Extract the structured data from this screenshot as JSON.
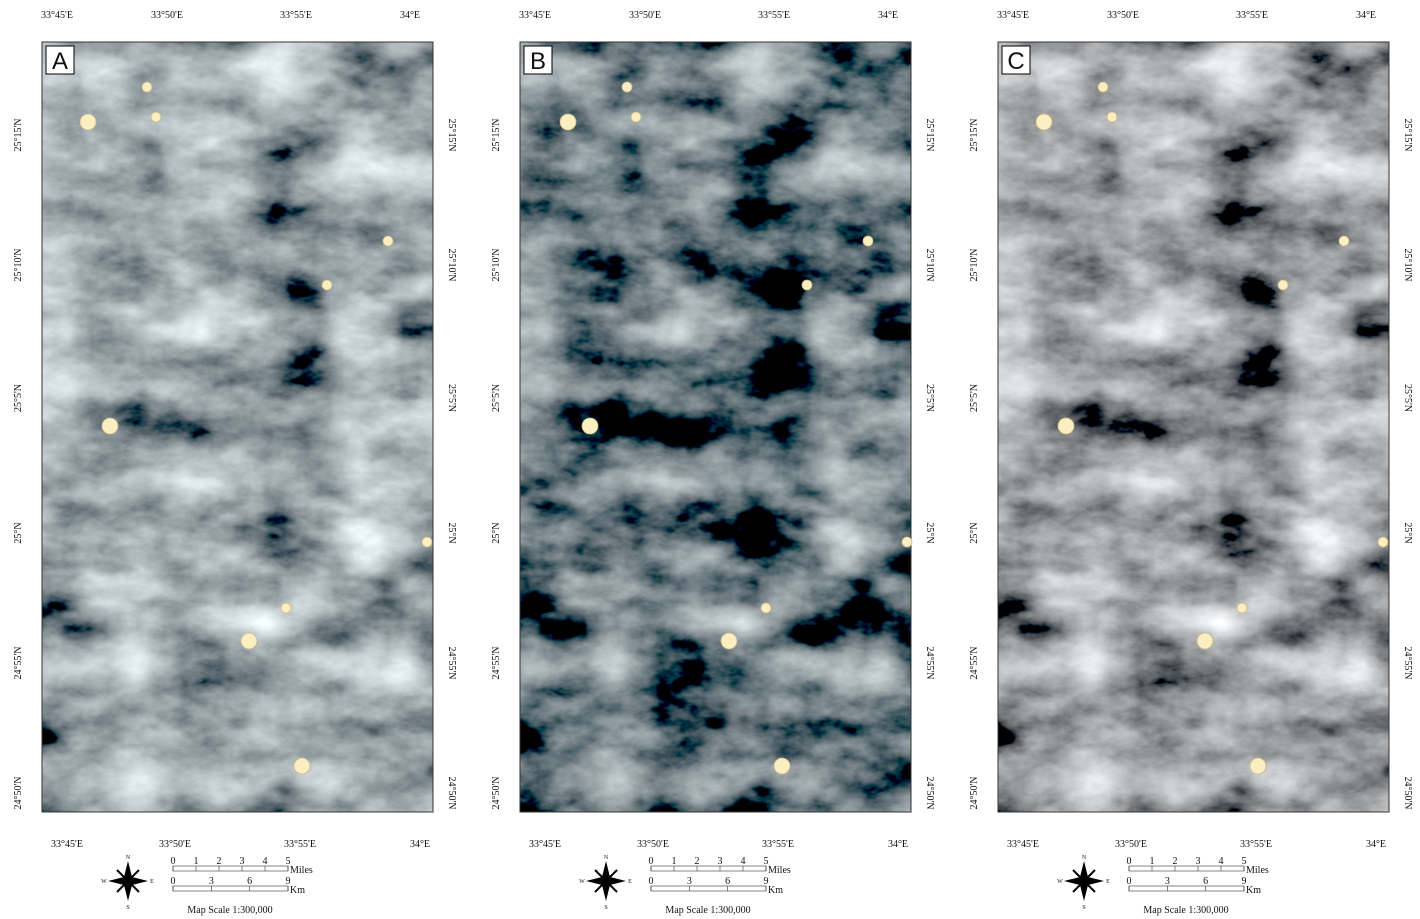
{
  "panels": [
    "A",
    "B",
    "C"
  ],
  "lon_labels": [
    "33°45'E",
    "33°50'E",
    "33°55'E",
    "34°E"
  ],
  "lat_labels": [
    "25°15'N",
    "25°10'N",
    "25°5'N",
    "25°N",
    "24°55'N",
    "24°50'N"
  ],
  "compass": {
    "north": "N",
    "south": "S",
    "east": "E",
    "west": "W"
  },
  "scale": {
    "miles_ticks": [
      0,
      1,
      2,
      3,
      4,
      5
    ],
    "miles_unit": "Miles",
    "km_ticks": [
      0,
      3,
      6,
      9
    ],
    "km_unit": "Km",
    "text": "Map Scale 1:300,000"
  }
}
